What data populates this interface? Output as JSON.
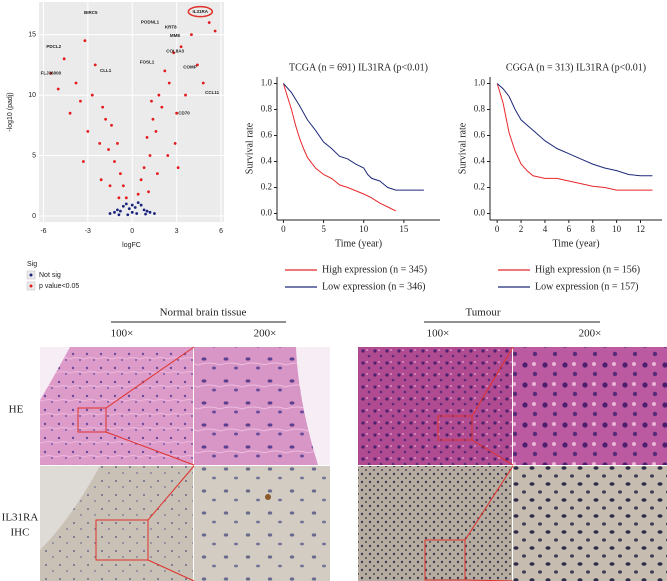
{
  "chart_data": [
    {
      "type": "scatter",
      "xlabel": "logFC",
      "ylabel": "-log10 (padj)",
      "xlim": [
        -6.3,
        6.2
      ],
      "ylim": [
        -0.5,
        17.7
      ],
      "xticks": [
        -6,
        -3,
        0,
        3,
        6
      ],
      "yticks": [
        0,
        5,
        10,
        15
      ],
      "grid": true,
      "legend_title": "Sig",
      "series": [
        {
          "name": "Not sig",
          "color": "#1a237e",
          "x": [
            -1.5,
            -1.2,
            -1,
            -0.8,
            -0.6,
            -0.4,
            -0.2,
            0,
            0.2,
            0.4,
            0.6,
            0.8,
            1,
            1.2,
            1.5,
            -0.3,
            0.3,
            -0.9,
            0.9,
            0
          ],
          "values": [
            0.2,
            0.3,
            0.5,
            0.4,
            0.8,
            1,
            0.6,
            0.3,
            0.7,
            1.1,
            0.9,
            0.5,
            0.4,
            0.3,
            0.2,
            0.1,
            0.2,
            0.1,
            0.15,
            0.9
          ]
        },
        {
          "name": "p value<0.05",
          "color": "#e41a1c",
          "x": [
            -5.5,
            -5,
            -4.6,
            -4.2,
            -3.8,
            -3.5,
            -3.2,
            -3,
            -2.7,
            -2.5,
            -2.2,
            -2,
            -1.8,
            -1.6,
            -1.4,
            -1.2,
            -1,
            -0.8,
            -0.6,
            -0.4,
            0.4,
            0.6,
            0.8,
            1,
            1.2,
            1.4,
            1.6,
            1.8,
            2,
            2.2,
            2.5,
            2.8,
            3,
            3.3,
            3.6,
            4,
            4.4,
            4.8,
            5.2,
            5.6,
            -2.1,
            -1.5,
            -0.9,
            1.1,
            1.7,
            2.4,
            3.1,
            -3.3,
            2.9,
            1.3
          ],
          "values": [
            11.8,
            10.5,
            13,
            8.5,
            11,
            9.5,
            14.5,
            7,
            10,
            12.5,
            6,
            9,
            8,
            5.5,
            7.5,
            4.5,
            6,
            3.5,
            2.5,
            1.5,
            1.8,
            3,
            4,
            6.5,
            5,
            8,
            7,
            10,
            9,
            12,
            11,
            13.5,
            8.5,
            14,
            10,
            15,
            12.5,
            11,
            16,
            15.3,
            3,
            2.5,
            1.5,
            2,
            3.5,
            5,
            4,
            4.5,
            6,
            9.5
          ]
        }
      ],
      "annotations": [
        {
          "text": "IL31RA",
          "x": 4.6,
          "y": 16.9,
          "highlight": true
        },
        {
          "text": "BIRC5",
          "x": -2.8,
          "y": 16.8
        },
        {
          "text": "PDCL2",
          "x": -5.3,
          "y": 14
        },
        {
          "text": "PODNL1",
          "x": 1.2,
          "y": 16
        },
        {
          "text": "KRT8",
          "x": 2.6,
          "y": 15.6
        },
        {
          "text": "MME",
          "x": 2.9,
          "y": 14.9
        },
        {
          "text": "COL8A3",
          "x": 2.9,
          "y": 13.6
        },
        {
          "text": "FOSL1",
          "x": 1,
          "y": 12.7
        },
        {
          "text": "COMP",
          "x": 3.9,
          "y": 12.3
        },
        {
          "text": "CLL1",
          "x": -1.8,
          "y": 12
        },
        {
          "text": "FLJ36000",
          "x": -5.5,
          "y": 11.8
        },
        {
          "text": "CCL11",
          "x": 5.4,
          "y": 10.2
        },
        {
          "text": "CD70",
          "x": 3.5,
          "y": 8.5
        }
      ]
    },
    {
      "type": "line",
      "title": "TCGA (n = 691) IL31RA (p<0.01)",
      "xlabel": "Time (year)",
      "ylabel": "Survival rate",
      "xlim": [
        -0.8,
        19.5
      ],
      "ylim": [
        -0.05,
        1.05
      ],
      "xticks": [
        0,
        5,
        10,
        15
      ],
      "yticks": [
        {
          "value": 0,
          "label": "0.0"
        },
        {
          "value": 0.2,
          "label": "0.2"
        },
        {
          "value": 0.4,
          "label": "0.4"
        },
        {
          "value": 0.6,
          "label": "0.6"
        },
        {
          "value": 0.8,
          "label": "0.8"
        },
        {
          "value": 1,
          "label": "1.0"
        }
      ],
      "series": [
        {
          "name": "High expression (n = 345)",
          "color": "#e8272b",
          "x": [
            0,
            0.5,
            1,
            1.5,
            2,
            2.5,
            3,
            4,
            5,
            6,
            7,
            8,
            10,
            11,
            12,
            13,
            14
          ],
          "values": [
            1,
            0.9,
            0.8,
            0.68,
            0.58,
            0.5,
            0.43,
            0.35,
            0.3,
            0.27,
            0.22,
            0.2,
            0.15,
            0.12,
            0.08,
            0.05,
            0.02
          ]
        },
        {
          "name": "Low expression (n = 346)",
          "color": "#1f2a7a",
          "x": [
            0,
            1,
            2,
            3,
            4,
            5,
            6,
            7,
            8,
            9,
            10,
            10.5,
            11,
            12,
            13,
            14,
            17.5
          ],
          "values": [
            1,
            0.93,
            0.83,
            0.72,
            0.64,
            0.55,
            0.5,
            0.44,
            0.42,
            0.38,
            0.35,
            0.3,
            0.27,
            0.25,
            0.2,
            0.18,
            0.18
          ]
        }
      ]
    },
    {
      "type": "line",
      "title": "CGGA (n = 313) IL31RA (p<0.01)",
      "xlabel": "Time (year)",
      "ylabel": "Survival rate",
      "xlim": [
        -0.6,
        13.8
      ],
      "ylim": [
        -0.05,
        1.05
      ],
      "xticks": [
        0,
        2,
        4,
        6,
        8,
        10,
        12
      ],
      "yticks": [
        {
          "value": 0,
          "label": "0.0"
        },
        {
          "value": 0.2,
          "label": "0.2"
        },
        {
          "value": 0.4,
          "label": "0.4"
        },
        {
          "value": 0.6,
          "label": "0.6"
        },
        {
          "value": 0.8,
          "label": "0.8"
        },
        {
          "value": 1,
          "label": "1.0"
        }
      ],
      "series": [
        {
          "name": "High expression (n = 156)",
          "color": "#e8272b",
          "x": [
            0,
            0.5,
            1,
            1.5,
            2,
            2.5,
            3,
            4,
            5,
            6,
            7,
            8,
            9,
            10,
            13
          ],
          "values": [
            1,
            0.85,
            0.62,
            0.48,
            0.38,
            0.33,
            0.29,
            0.27,
            0.27,
            0.25,
            0.23,
            0.21,
            0.2,
            0.18,
            0.18
          ]
        },
        {
          "name": "Low expression (n = 157)",
          "color": "#1f2a7a",
          "x": [
            0,
            0.5,
            1,
            1.5,
            2,
            3,
            4,
            5,
            6,
            7,
            8,
            9,
            10,
            11,
            12,
            13
          ],
          "values": [
            1,
            0.96,
            0.9,
            0.8,
            0.72,
            0.64,
            0.56,
            0.5,
            0.46,
            0.42,
            0.38,
            0.35,
            0.33,
            0.3,
            0.29,
            0.29
          ]
        }
      ]
    }
  ],
  "histology": {
    "normal_title": "Normal brain tissue",
    "tumour_title": "Tumour",
    "normal_mag": [
      "100×",
      "200×"
    ],
    "tumour_mag": [
      "100×",
      "200×"
    ],
    "rows": [
      [
        "HE"
      ],
      [
        "IL31RA",
        "IHC"
      ]
    ]
  }
}
